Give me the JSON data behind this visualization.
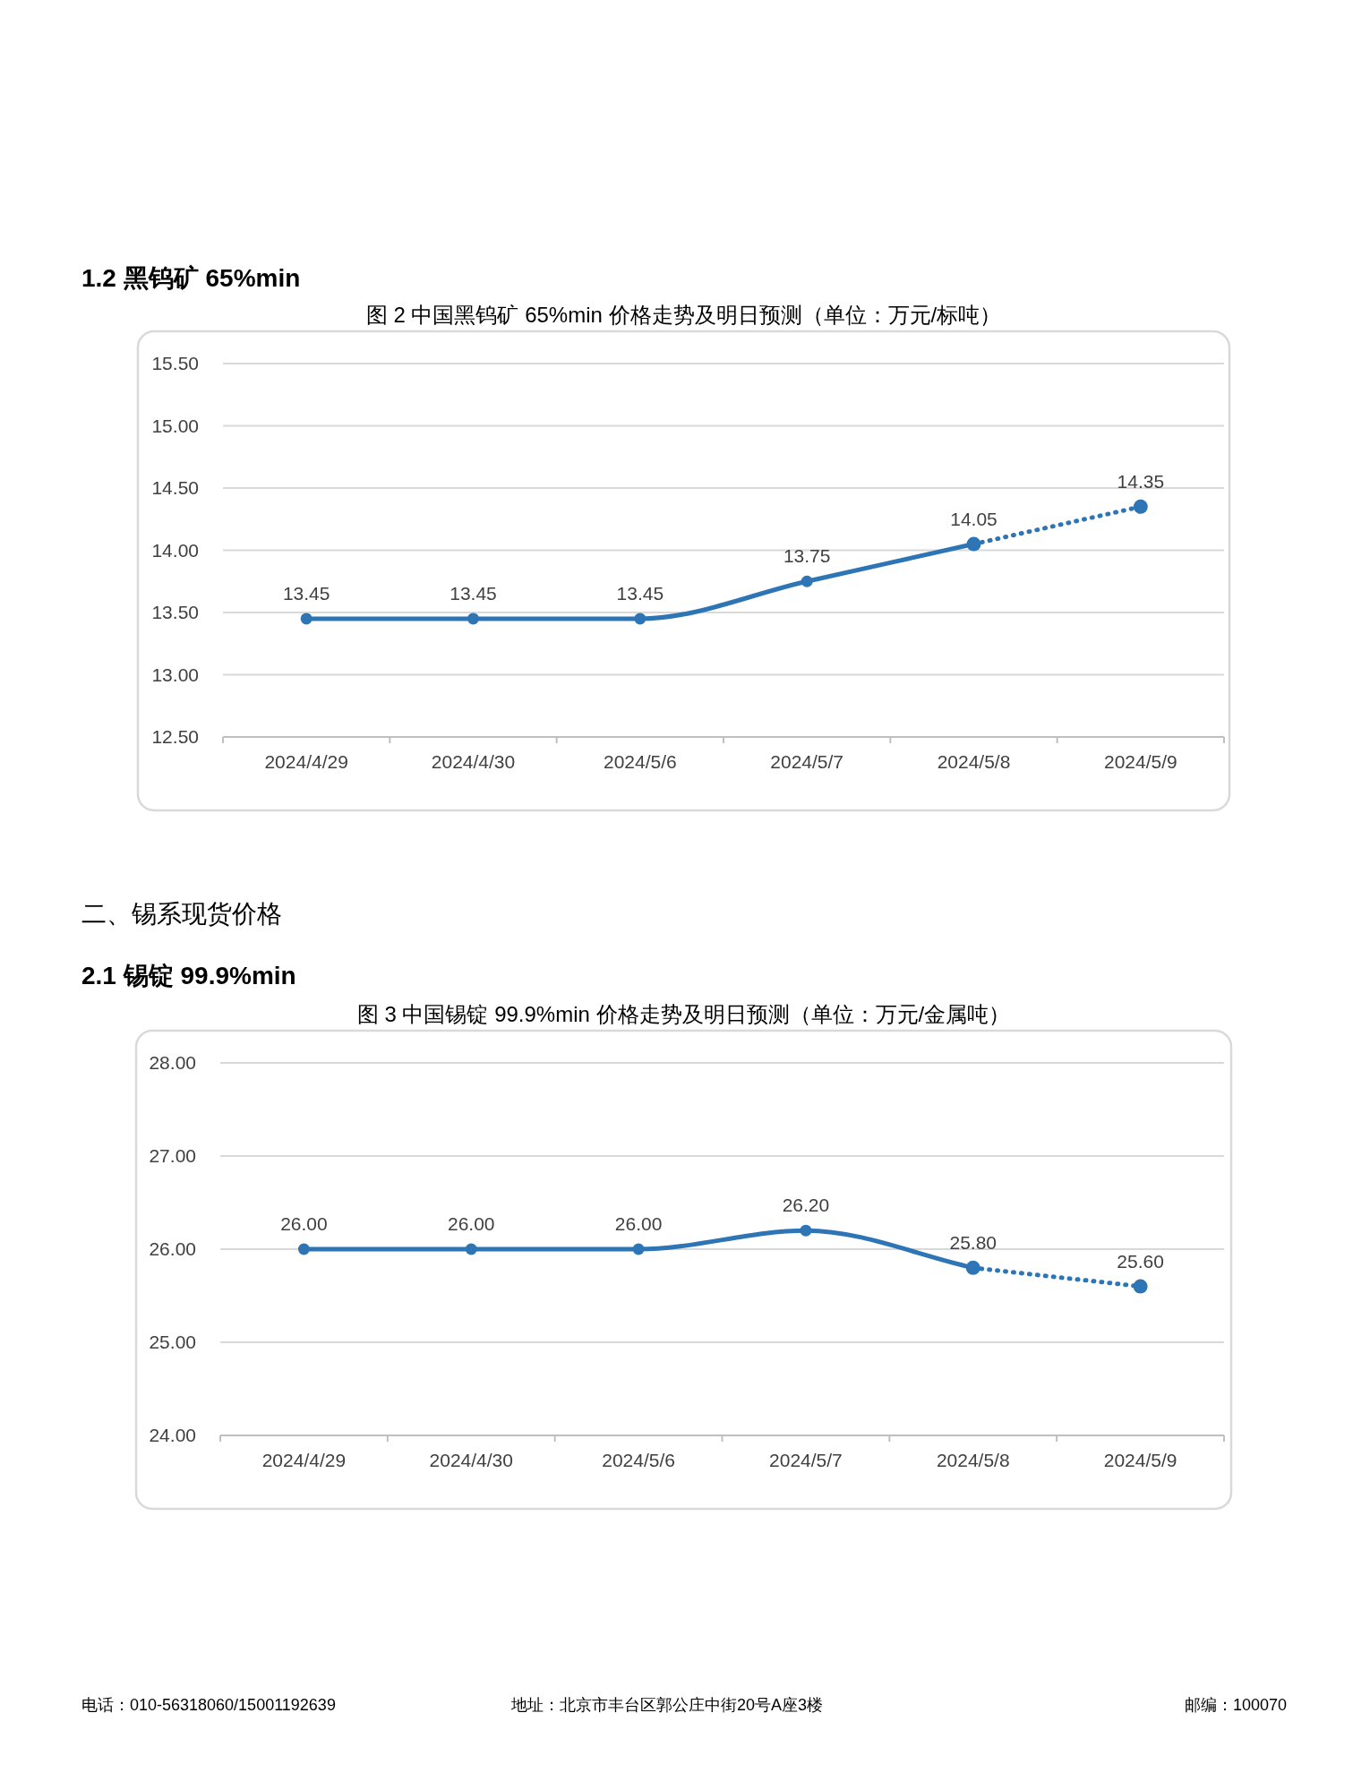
{
  "chart_data": [
    {
      "type": "line",
      "title": "图 2 中国黑钨矿 65%min 价格走势及明日预测（单位：万元/标吨）",
      "annotations": [
        "1.2 黑钨矿 65%min"
      ],
      "categories": [
        "2024/4/29",
        "2024/4/30",
        "2024/5/6",
        "2024/5/7",
        "2024/5/8",
        "2024/5/9"
      ],
      "series": [
        {
          "color": "#2e75b6",
          "line_style": "solid",
          "values": [
            13.45,
            13.45,
            13.45,
            13.75,
            14.05,
            null
          ],
          "value_labels": [
            "13.45",
            "13.45",
            "13.45",
            "13.75",
            "14.05",
            null
          ]
        },
        {
          "color": "#2e75b6",
          "line_style": "dotted",
          "values": [
            null,
            null,
            null,
            null,
            14.05,
            14.35
          ],
          "value_labels": [
            null,
            null,
            null,
            null,
            null,
            "14.35"
          ]
        }
      ],
      "ylim": [
        12.5,
        15.5
      ],
      "yticks": [
        {
          "value": 12.5,
          "label": "12.50"
        },
        {
          "value": 13,
          "label": "13.00"
        },
        {
          "value": 13.5,
          "label": "13.50"
        },
        {
          "value": 14,
          "label": "14.00"
        },
        {
          "value": 14.5,
          "label": "14.50"
        },
        {
          "value": 15,
          "label": "15.00"
        },
        {
          "value": 15.5,
          "label": "15.50"
        }
      ],
      "grid": "y",
      "marker": "circle"
    },
    {
      "type": "line",
      "title": "图 3 中国锡锭 99.9%min 价格走势及明日预测（单位：万元/金属吨）",
      "annotations": [
        "二、锡系现货价格",
        "2.1 锡锭 99.9%min",
        "电话：010-56318060/15001192639",
        "地址：北京市丰台区郭公庄中街20号A座3楼",
        "邮编：100070"
      ],
      "categories": [
        "2024/4/29",
        "2024/4/30",
        "2024/5/6",
        "2024/5/7",
        "2024/5/8",
        "2024/5/9"
      ],
      "series": [
        {
          "color": "#2e75b6",
          "line_style": "solid",
          "values": [
            26.0,
            26.0,
            26.0,
            26.2,
            25.8,
            null
          ],
          "value_labels": [
            "26.00",
            "26.00",
            "26.00",
            "26.20",
            "25.80",
            null
          ]
        },
        {
          "color": "#2e75b6",
          "line_style": "dotted",
          "values": [
            null,
            null,
            null,
            null,
            25.8,
            25.6
          ],
          "value_labels": [
            null,
            null,
            null,
            null,
            null,
            "25.60"
          ]
        }
      ],
      "ylim": [
        24,
        28
      ],
      "yticks": [
        {
          "value": 24,
          "label": "24.00"
        },
        {
          "value": 25,
          "label": "25.00"
        },
        {
          "value": 26,
          "label": "26.00"
        },
        {
          "value": 27,
          "label": "27.00"
        },
        {
          "value": 28,
          "label": "28.00"
        }
      ],
      "grid": "y",
      "marker": "circle"
    }
  ]
}
